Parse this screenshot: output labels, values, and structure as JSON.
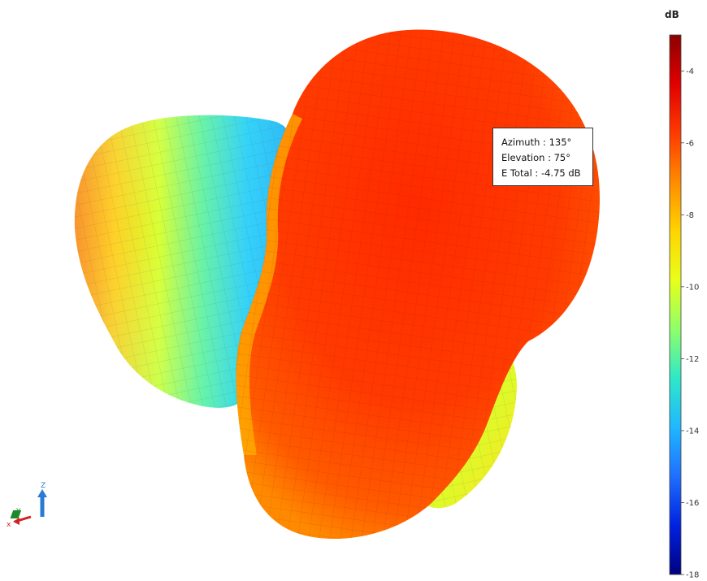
{
  "chart_data": {
    "type": "3d-surface-radiation-pattern",
    "quantity": "E Total",
    "colorbar": {
      "title": "dB",
      "min": -18,
      "max": -3,
      "ticks": [
        "-4",
        "-6",
        "-8",
        "-10",
        "-12",
        "-14",
        "-16",
        "-18"
      ],
      "tick_values": [
        -4,
        -6,
        -8,
        -10,
        -12,
        -14,
        -16,
        -18
      ],
      "colors": [
        "#8b0000",
        "#e00000",
        "#ff3a00",
        "#ff8c00",
        "#ffd400",
        "#e8ff1a",
        "#8fff6a",
        "#2fe8c8",
        "#1fb8ff",
        "#1f6fff",
        "#0022e0",
        "#000080"
      ]
    },
    "tooltip": {
      "azimuth": "Azimuth : 135°",
      "elevation": "Elevation : 75°",
      "e_total": "E Total : -4.75 dB"
    },
    "axes": {
      "x_label": "x",
      "y_label": "Y",
      "z_label": "Z",
      "x_color": "#d42020",
      "y_color": "#1d8a2a",
      "z_color": "#2a7ad8"
    }
  }
}
